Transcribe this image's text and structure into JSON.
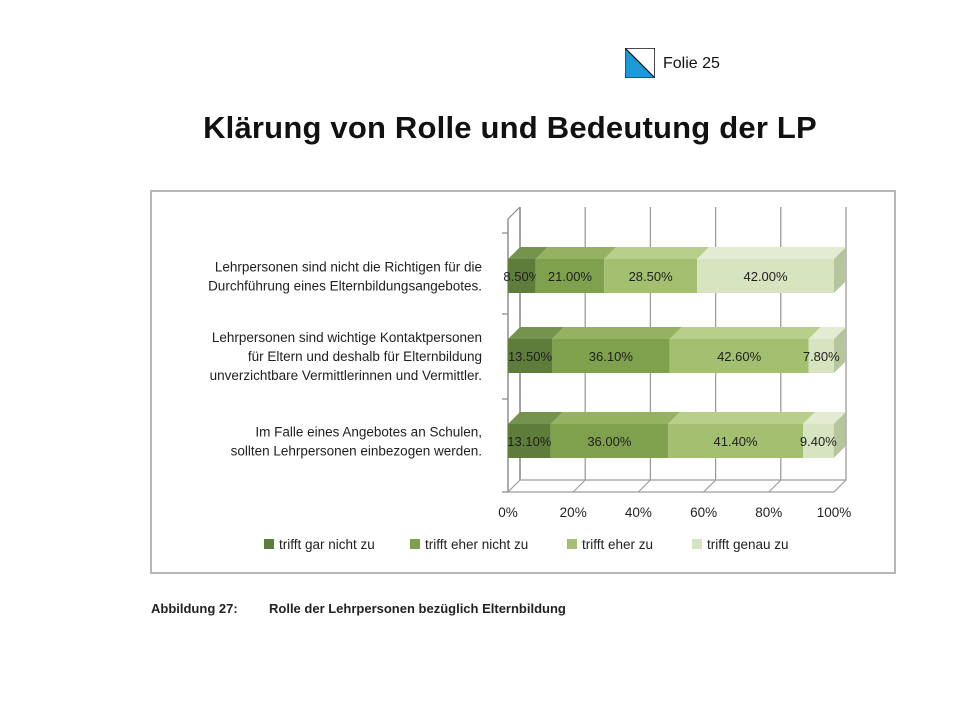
{
  "header": {
    "slide_label": "Folie 25",
    "title": "Klärung von Rolle und Bedeutung der LP"
  },
  "caption": {
    "label": "Abbildung 27:",
    "text": "Rolle der Lehrpersonen bezüglich Elternbildung"
  },
  "colors": {
    "logo_blue": "#1c9ad6",
    "series": [
      "#5e7c3a",
      "#7fa04d",
      "#a3c071",
      "#d6e4bf"
    ],
    "series_side": [
      "#496230",
      "#66843a",
      "#87a35a",
      "#b5c69c"
    ],
    "series_top": [
      "#75924e",
      "#95b262",
      "#b7cf8b",
      "#e3ecd2"
    ]
  },
  "chart_data": {
    "type": "bar",
    "orientation": "horizontal",
    "stacked": true,
    "percent": true,
    "style": "3d",
    "categories": [
      [
        "Lehrpersonen sind nicht die Richtigen für die",
        "Durchführung eines Elternbildungsangebotes."
      ],
      [
        "Lehrpersonen sind wichtige Kontaktpersonen",
        "für Eltern und deshalb für Elternbildung",
        "unverzichtbare Vermittlerinnen und Vermittler."
      ],
      [
        "Im Falle eines Angebotes an Schulen,",
        "sollten Lehrpersonen einbezogen werden."
      ]
    ],
    "series": [
      {
        "name": "trifft gar nicht zu",
        "values": [
          8.5,
          13.5,
          13.1
        ],
        "labels": [
          "8.50%",
          "13.50%",
          "13.10%"
        ]
      },
      {
        "name": "trifft eher nicht zu",
        "values": [
          21.0,
          36.1,
          36.0
        ],
        "labels": [
          "21.00%",
          "36.10%",
          "36.00%"
        ]
      },
      {
        "name": "trifft eher zu",
        "values": [
          28.5,
          42.6,
          41.4
        ],
        "labels": [
          "28.50%",
          "42.60%",
          "41.40%"
        ]
      },
      {
        "name": "trifft genau zu",
        "values": [
          42.0,
          7.8,
          9.4
        ],
        "labels": [
          "42.00%",
          "7.80%",
          "9.40%"
        ]
      }
    ],
    "xlim": [
      0,
      100
    ],
    "xticks": [
      "0%",
      "20%",
      "40%",
      "60%",
      "80%",
      "100%"
    ],
    "grid": true,
    "legend_position": "bottom"
  }
}
